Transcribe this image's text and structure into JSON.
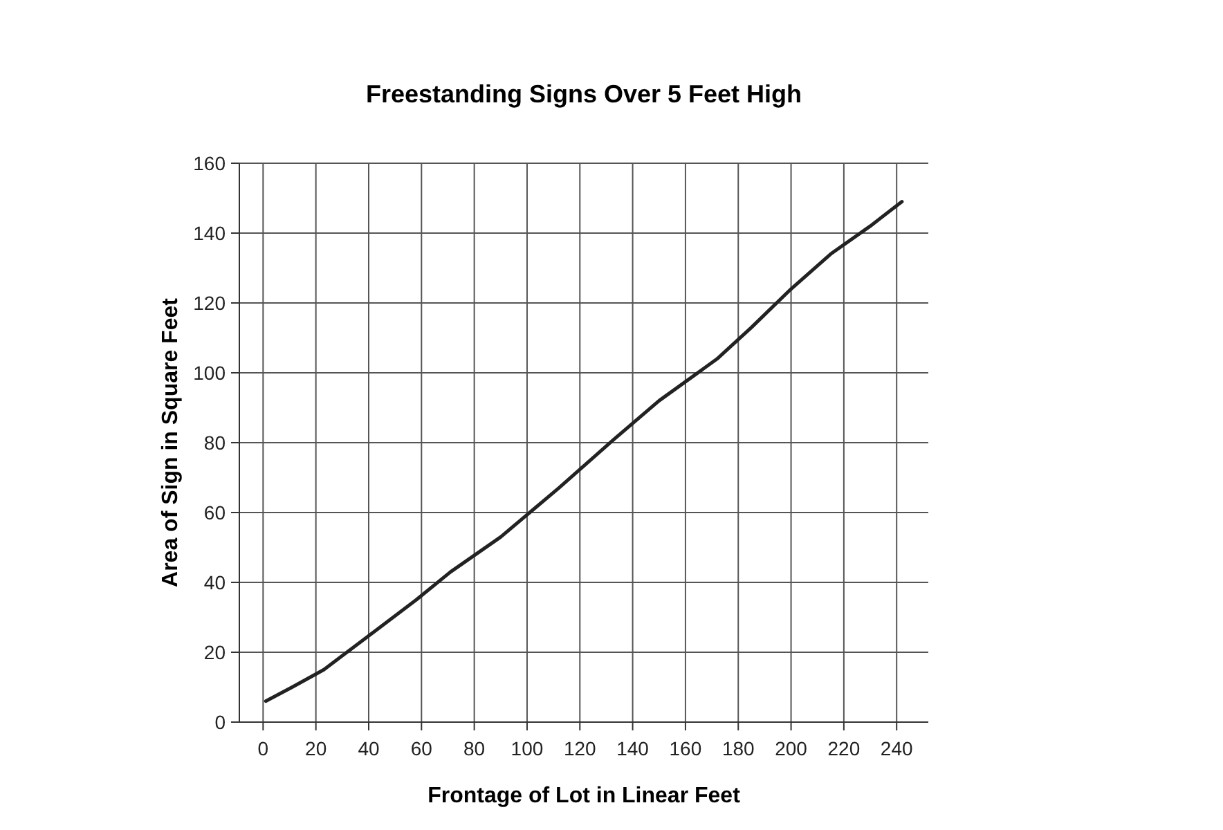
{
  "chart_data": {
    "type": "line",
    "title": "Freestanding Signs Over 5 Feet High",
    "xlabel": "Frontage of Lot in Linear Feet",
    "ylabel": "Area of Sign in Square Feet",
    "xlim": [
      -9,
      252
    ],
    "xticks": [
      0,
      20,
      40,
      60,
      80,
      100,
      120,
      140,
      160,
      180,
      200,
      220,
      240
    ],
    "ylim": [
      0,
      160
    ],
    "yticks": [
      0,
      20,
      40,
      60,
      80,
      100,
      120,
      140,
      160
    ],
    "grid": true,
    "series": [
      {
        "color": "#222222",
        "x": [
          1,
          11,
          23,
          30,
          44,
          58,
          71,
          90,
          101,
          112,
          133,
          150,
          172,
          185,
          200,
          215,
          230,
          242
        ],
        "values": [
          6,
          10,
          15,
          19,
          27,
          35,
          43,
          53,
          60,
          67,
          81,
          92,
          104,
          113,
          124,
          134,
          142,
          149
        ]
      }
    ]
  }
}
